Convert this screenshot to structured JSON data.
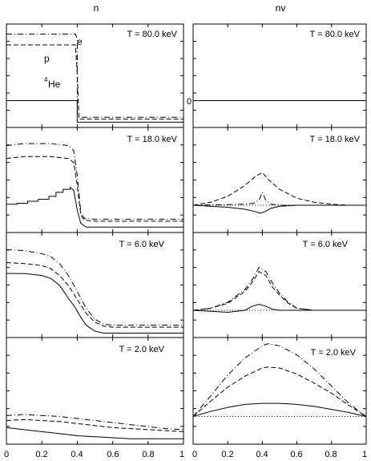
{
  "columns": [
    {
      "title": "n"
    },
    {
      "title": "nv"
    }
  ],
  "panel_titles": [
    "T = 80.0 keV",
    "T = 18.0 keV",
    "T = 6.0 keV",
    "T = 2.0 keV"
  ],
  "x_ticks": [
    "0",
    "0.2",
    "0.4",
    "0.6",
    "0.8",
    "1"
  ],
  "annotations": {
    "e": "e",
    "p": "p",
    "he_sup": "4",
    "he": "He",
    "zero": "0"
  },
  "chart_data": [
    {
      "type": "line",
      "column": "n",
      "title": "T = 80.0 keV",
      "xlim": [
        0,
        1
      ],
      "ylim": [
        0,
        1
      ],
      "series": [
        {
          "name": "e",
          "style": "dashdot",
          "x": [
            0,
            0.39,
            0.39,
            0.4,
            0.4,
            1
          ],
          "y": [
            0.93,
            0.93,
            0.93,
            0.88,
            0.08,
            0.08
          ]
        },
        {
          "name": "p",
          "style": "dashed",
          "x": [
            0,
            0.39,
            0.4,
            0.41,
            1
          ],
          "y": [
            0.82,
            0.82,
            0.52,
            0.06,
            0.06
          ]
        },
        {
          "name": "4He",
          "style": "solid",
          "x": [
            0,
            0.39,
            0.4,
            0.4,
            1
          ],
          "y": [
            0.25,
            0.25,
            0.25,
            0.03,
            0.03
          ]
        }
      ]
    },
    {
      "type": "line",
      "column": "nv",
      "title": "T = 80.0 keV",
      "xlim": [
        0,
        1
      ],
      "ylim": [
        0,
        1
      ],
      "series": [
        {
          "style": "dotted",
          "x": [
            0,
            1
          ],
          "y": [
            0.25,
            0.25
          ]
        },
        {
          "style": "dashdot",
          "x": [
            0,
            1
          ],
          "y": [
            0.25,
            0.25
          ]
        },
        {
          "style": "dashed",
          "x": [
            0,
            1
          ],
          "y": [
            0.25,
            0.25
          ]
        },
        {
          "style": "solid",
          "x": [
            0,
            1
          ],
          "y": [
            0.25,
            0.25
          ]
        }
      ]
    },
    {
      "type": "line",
      "column": "n",
      "title": "T = 18.0 keV",
      "xlim": [
        0,
        1
      ],
      "ylim": [
        0,
        1
      ],
      "series": [
        {
          "style": "dashdot",
          "x": [
            0,
            0.05,
            0.1,
            0.15,
            0.2,
            0.25,
            0.3,
            0.35,
            0.38,
            0.4,
            0.42,
            0.44,
            0.5,
            0.6,
            0.8,
            1
          ],
          "y": [
            0.85,
            0.86,
            0.87,
            0.87,
            0.87,
            0.87,
            0.86,
            0.85,
            0.8,
            0.55,
            0.18,
            0.12,
            0.11,
            0.11,
            0.11,
            0.11
          ]
        },
        {
          "style": "dashed",
          "x": [
            0,
            0.05,
            0.1,
            0.15,
            0.2,
            0.25,
            0.3,
            0.35,
            0.38,
            0.4,
            0.42,
            0.44,
            0.5,
            0.6,
            0.8,
            1
          ],
          "y": [
            0.72,
            0.73,
            0.74,
            0.74,
            0.74,
            0.74,
            0.73,
            0.72,
            0.68,
            0.45,
            0.15,
            0.1,
            0.09,
            0.09,
            0.09,
            0.09
          ]
        },
        {
          "style": "solid",
          "x": [
            0,
            0.06,
            0.06,
            0.12,
            0.12,
            0.18,
            0.18,
            0.24,
            0.24,
            0.28,
            0.28,
            0.32,
            0.32,
            0.36,
            0.36,
            0.38,
            0.4,
            0.42,
            0.45,
            0.5,
            0.6,
            0.8,
            1
          ],
          "y": [
            0.26,
            0.26,
            0.27,
            0.27,
            0.29,
            0.29,
            0.31,
            0.31,
            0.34,
            0.34,
            0.38,
            0.38,
            0.41,
            0.41,
            0.43,
            0.4,
            0.2,
            0.07,
            0.03,
            0.03,
            0.03,
            0.03,
            0.03
          ]
        }
      ]
    },
    {
      "type": "line",
      "column": "nv",
      "title": "T = 18.0 keV",
      "xlim": [
        0,
        1
      ],
      "ylim": [
        0,
        1
      ],
      "series": [
        {
          "style": "dotted",
          "x": [
            0,
            1
          ],
          "y": [
            0.25,
            0.25
          ]
        },
        {
          "style": "dashed",
          "x": [
            0,
            0.1,
            0.2,
            0.3,
            0.36,
            0.4,
            0.44,
            0.5,
            0.6,
            0.7,
            0.8,
            0.9,
            1
          ],
          "y": [
            0.25,
            0.28,
            0.34,
            0.45,
            0.54,
            0.58,
            0.5,
            0.41,
            0.32,
            0.28,
            0.26,
            0.25,
            0.25
          ]
        },
        {
          "style": "dashdot",
          "x": [
            0,
            0.3,
            0.35,
            0.38,
            0.4,
            0.42,
            0.45,
            0.5,
            1
          ],
          "y": [
            0.25,
            0.26,
            0.27,
            0.3,
            0.38,
            0.3,
            0.26,
            0.25,
            0.25
          ]
        },
        {
          "style": "solid",
          "x": [
            0,
            0.1,
            0.2,
            0.3,
            0.35,
            0.39,
            0.42,
            0.45,
            0.5,
            0.6,
            0.8,
            1
          ],
          "y": [
            0.25,
            0.24,
            0.23,
            0.21,
            0.19,
            0.17,
            0.19,
            0.22,
            0.24,
            0.25,
            0.25,
            0.25
          ]
        }
      ]
    },
    {
      "type": "line",
      "column": "n",
      "title": "T = 6.0 keV",
      "xlim": [
        0,
        1
      ],
      "ylim": [
        0,
        1
      ],
      "series": [
        {
          "style": "dashdot",
          "x": [
            0,
            0.1,
            0.2,
            0.25,
            0.3,
            0.35,
            0.4,
            0.45,
            0.5,
            0.55,
            0.6,
            0.8,
            1
          ],
          "y": [
            0.86,
            0.85,
            0.82,
            0.79,
            0.72,
            0.6,
            0.44,
            0.27,
            0.16,
            0.11,
            0.1,
            0.1,
            0.1
          ]
        },
        {
          "style": "dashed",
          "x": [
            0,
            0.1,
            0.2,
            0.25,
            0.3,
            0.35,
            0.4,
            0.45,
            0.5,
            0.55,
            0.6,
            0.8,
            1
          ],
          "y": [
            0.73,
            0.72,
            0.7,
            0.67,
            0.6,
            0.5,
            0.36,
            0.22,
            0.13,
            0.09,
            0.08,
            0.08,
            0.08
          ]
        },
        {
          "style": "solid",
          "x": [
            0,
            0.1,
            0.2,
            0.25,
            0.28,
            0.3,
            0.32,
            0.35,
            0.38,
            0.4,
            0.42,
            0.45,
            0.5,
            0.55,
            0.6,
            0.8,
            1
          ],
          "y": [
            0.62,
            0.62,
            0.6,
            0.57,
            0.53,
            0.5,
            0.45,
            0.37,
            0.3,
            0.24,
            0.18,
            0.1,
            0.04,
            0.02,
            0.02,
            0.02,
            0.02
          ]
        }
      ]
    },
    {
      "type": "line",
      "column": "nv",
      "title": "T = 6.0 keV",
      "xlim": [
        0,
        1
      ],
      "ylim": [
        0,
        1
      ],
      "series": [
        {
          "style": "dotted",
          "x": [
            0,
            1
          ],
          "y": [
            0.25,
            0.25
          ]
        },
        {
          "style": "dashdot",
          "x": [
            0,
            0.1,
            0.2,
            0.3,
            0.35,
            0.38,
            0.42,
            0.46,
            0.5,
            0.55,
            0.6,
            0.7,
            0.8,
            1
          ],
          "y": [
            0.25,
            0.27,
            0.33,
            0.46,
            0.58,
            0.68,
            0.64,
            0.52,
            0.42,
            0.33,
            0.27,
            0.25,
            0.25,
            0.25
          ]
        },
        {
          "style": "dashed",
          "x": [
            0,
            0.1,
            0.2,
            0.3,
            0.35,
            0.38,
            0.42,
            0.46,
            0.5,
            0.55,
            0.6,
            0.7,
            0.8,
            1
          ],
          "y": [
            0.25,
            0.27,
            0.32,
            0.44,
            0.55,
            0.64,
            0.6,
            0.48,
            0.4,
            0.32,
            0.27,
            0.25,
            0.25,
            0.25
          ]
        },
        {
          "style": "solid",
          "x": [
            0,
            0.1,
            0.2,
            0.3,
            0.34,
            0.38,
            0.42,
            0.46,
            0.5,
            0.6,
            0.8,
            1
          ],
          "y": [
            0.25,
            0.24,
            0.23,
            0.25,
            0.29,
            0.31,
            0.29,
            0.26,
            0.25,
            0.25,
            0.25,
            0.25
          ]
        }
      ]
    },
    {
      "type": "line",
      "column": "n",
      "title": "T = 2.0 keV",
      "xlim": [
        0,
        1
      ],
      "ylim": [
        0,
        1
      ],
      "series": [
        {
          "style": "dashdot",
          "x": [
            0,
            0.1,
            0.2,
            0.3,
            0.4,
            0.5,
            0.6,
            0.7,
            0.8,
            0.9,
            1
          ],
          "y": [
            0.26,
            0.27,
            0.26,
            0.25,
            0.23,
            0.21,
            0.19,
            0.17,
            0.15,
            0.13,
            0.12
          ]
        },
        {
          "style": "dashed",
          "x": [
            0,
            0.1,
            0.2,
            0.3,
            0.4,
            0.5,
            0.6,
            0.7,
            0.8,
            0.9,
            1
          ],
          "y": [
            0.21,
            0.22,
            0.21,
            0.2,
            0.18,
            0.16,
            0.14,
            0.13,
            0.12,
            0.11,
            0.1
          ]
        },
        {
          "style": "solid",
          "x": [
            0,
            0.1,
            0.2,
            0.3,
            0.4,
            0.5,
            0.6,
            0.7,
            0.8,
            0.9,
            1
          ],
          "y": [
            0.14,
            0.12,
            0.1,
            0.08,
            0.06,
            0.05,
            0.04,
            0.03,
            0.03,
            0.03,
            0.03
          ]
        }
      ]
    },
    {
      "type": "line",
      "column": "nv",
      "title": "T = 2.0 keV",
      "xlim": [
        0,
        1
      ],
      "xticks": [
        0,
        0.2,
        0.4,
        0.6,
        0.8,
        1
      ],
      "ylim": [
        0,
        1
      ],
      "series": [
        {
          "style": "dotted",
          "x": [
            0,
            1
          ],
          "y": [
            0.25,
            0.25
          ]
        },
        {
          "style": "dashdot",
          "x": [
            0,
            0.1,
            0.2,
            0.3,
            0.4,
            0.43,
            0.5,
            0.6,
            0.7,
            0.8,
            0.9,
            1
          ],
          "y": [
            0.25,
            0.45,
            0.66,
            0.83,
            0.95,
            0.97,
            0.95,
            0.86,
            0.72,
            0.55,
            0.38,
            0.25
          ]
        },
        {
          "style": "dashed",
          "x": [
            0,
            0.1,
            0.2,
            0.3,
            0.4,
            0.43,
            0.5,
            0.6,
            0.7,
            0.8,
            0.9,
            1
          ],
          "y": [
            0.25,
            0.4,
            0.54,
            0.65,
            0.73,
            0.74,
            0.73,
            0.67,
            0.58,
            0.48,
            0.36,
            0.25
          ]
        },
        {
          "style": "solid",
          "x": [
            0,
            0.1,
            0.2,
            0.3,
            0.4,
            0.5,
            0.6,
            0.7,
            0.8,
            0.9,
            1
          ],
          "y": [
            0.25,
            0.3,
            0.34,
            0.37,
            0.38,
            0.38,
            0.37,
            0.35,
            0.32,
            0.29,
            0.25
          ]
        }
      ]
    }
  ]
}
